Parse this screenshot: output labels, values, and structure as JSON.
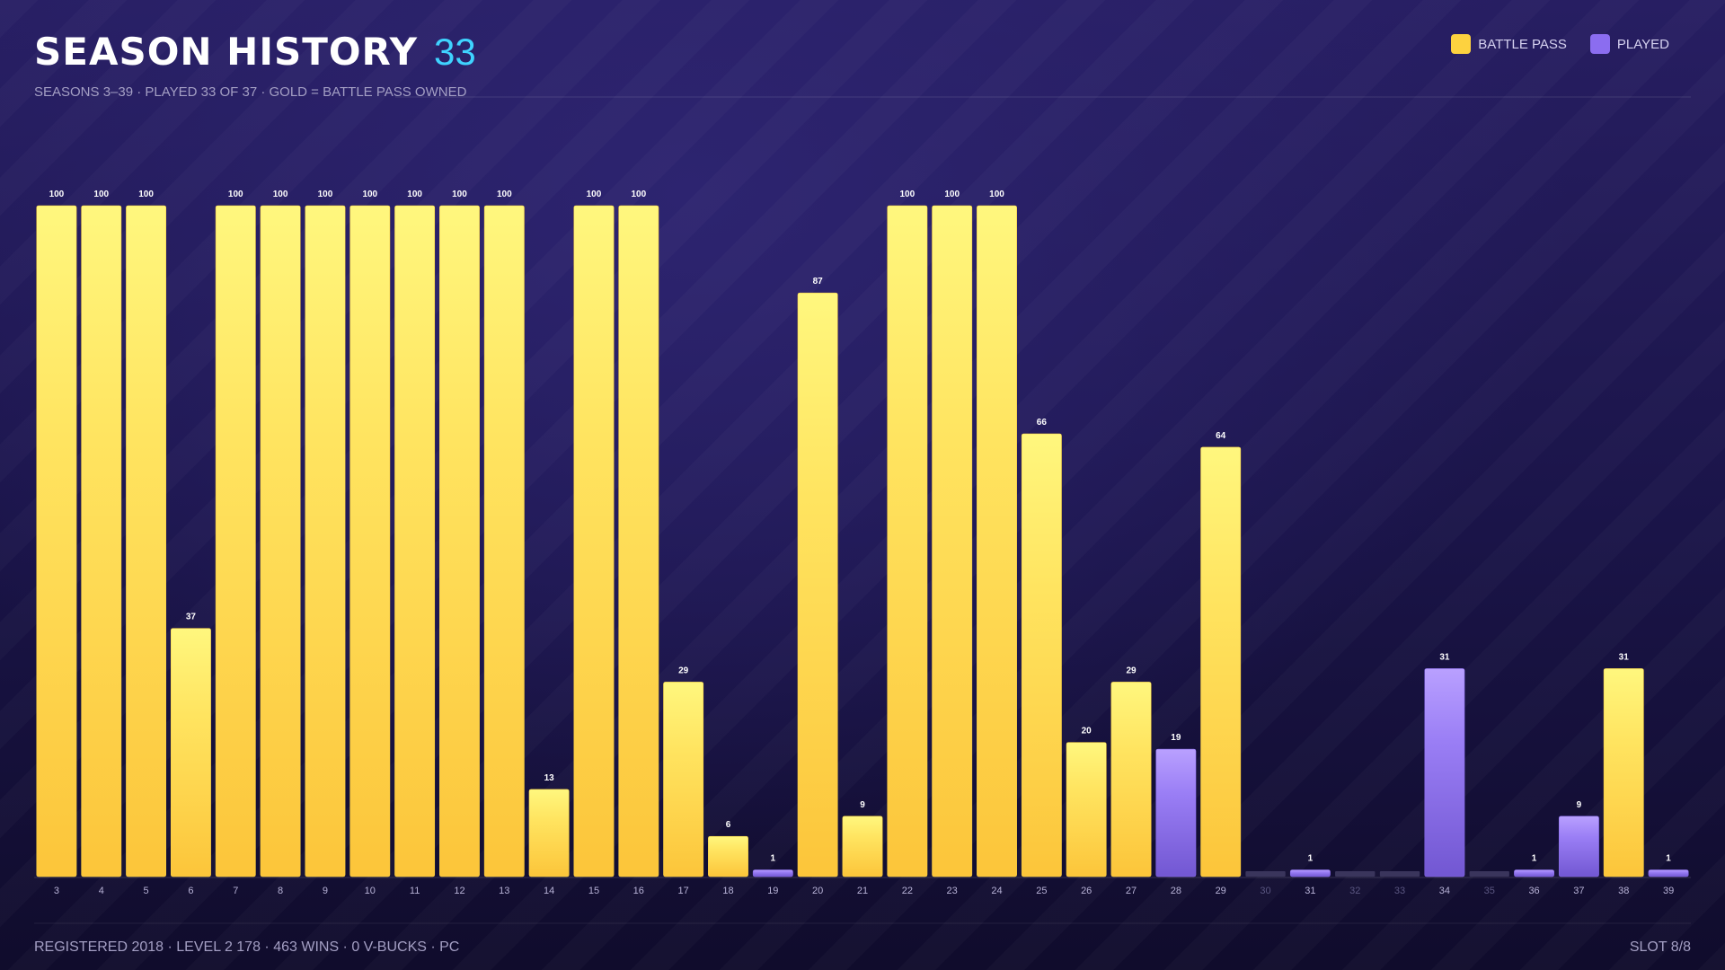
{
  "chart_data": {
    "type": "bar",
    "title": "SEASON HISTORY",
    "title_badge": "33",
    "subtitle": "SEASONS 3–39 · PLAYED 33 OF 37 · GOLD = BATTLE PASS OWNED",
    "footer": "REGISTERED 2018 · LEVEL 2 178 · 463 WINS · 0 V-BUCKS · PC",
    "footer_right": "SLOT 8/8",
    "categories": [
      "3",
      "4",
      "5",
      "6",
      "7",
      "8",
      "9",
      "10",
      "11",
      "12",
      "13",
      "14",
      "15",
      "16",
      "17",
      "18",
      "19",
      "20",
      "21",
      "22",
      "23",
      "24",
      "25",
      "26",
      "27",
      "28",
      "29",
      "30",
      "31",
      "32",
      "33",
      "34",
      "35",
      "36",
      "37",
      "38",
      "39"
    ],
    "ylim": [
      0,
      100
    ],
    "series": [
      {
        "name": "BATTLE PASS",
        "color": "#fdd23f",
        "values": [
          100,
          100,
          100,
          37,
          100,
          100,
          100,
          100,
          100,
          100,
          100,
          13,
          100,
          100,
          29,
          6,
          null,
          87,
          9,
          100,
          100,
          100,
          66,
          20,
          29,
          null,
          64,
          null,
          null,
          null,
          null,
          null,
          null,
          null,
          null,
          31,
          null
        ]
      },
      {
        "name": "PLAYED",
        "color": "#8b6df0",
        "values": [
          null,
          null,
          null,
          null,
          null,
          null,
          null,
          null,
          null,
          null,
          null,
          null,
          null,
          null,
          null,
          null,
          1,
          null,
          null,
          null,
          null,
          null,
          null,
          null,
          null,
          19,
          null,
          null,
          1,
          null,
          null,
          31,
          null,
          1,
          9,
          null,
          1
        ]
      }
    ]
  }
}
